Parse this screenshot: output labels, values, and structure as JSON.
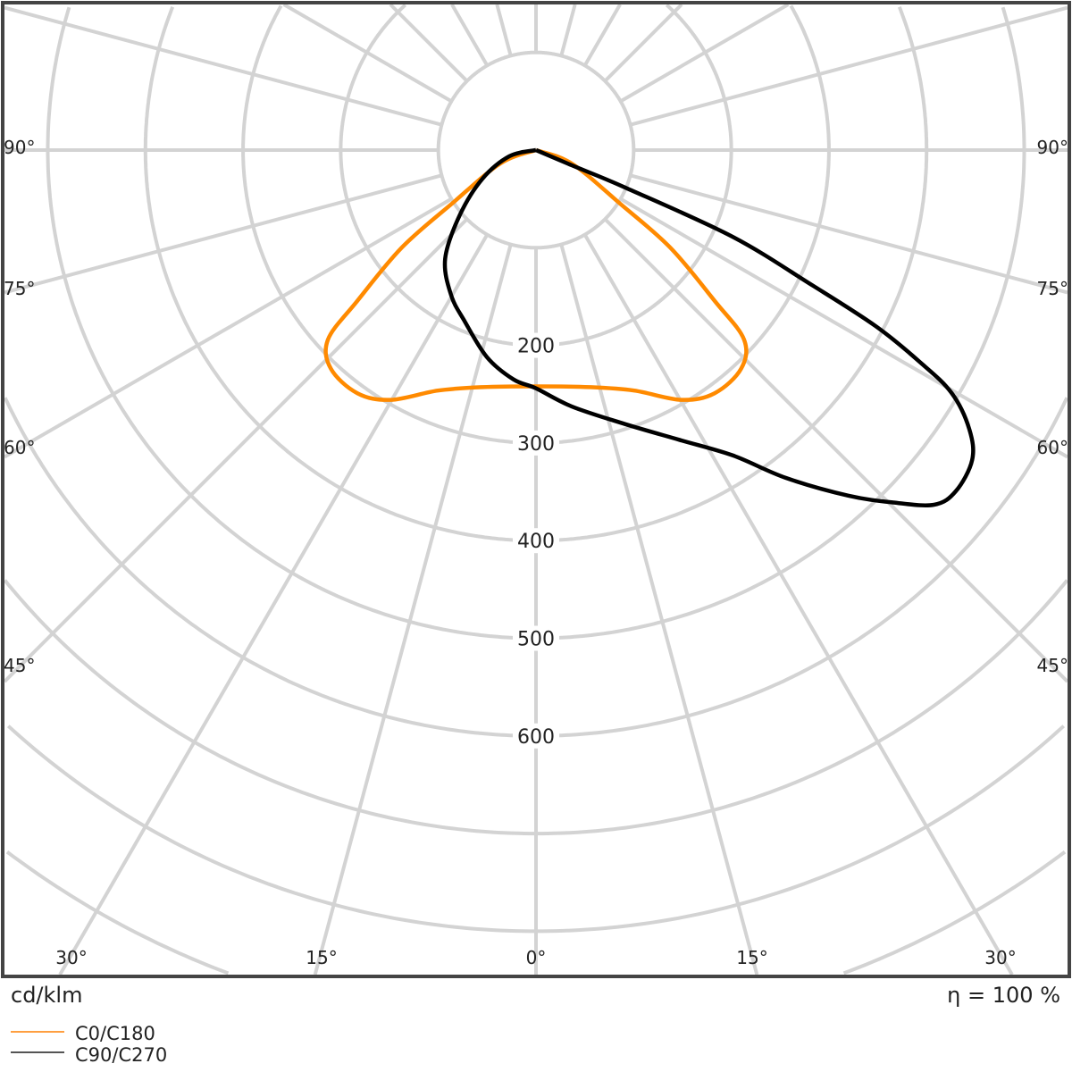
{
  "chart_data": {
    "type": "polar-line",
    "unit_label": "cd/klm",
    "efficiency_label": "η = 100 %",
    "radial_ticks": [
      200,
      300,
      400,
      500,
      600
    ],
    "radial_grid_step": 100,
    "angle_grid_step_deg": 15,
    "angle_labels_left": [
      "90°",
      "75°",
      "60°",
      "45°"
    ],
    "angle_labels_side_values": [
      90,
      75,
      60,
      45
    ],
    "angle_labels_bottom": [
      "30°",
      "15°",
      "0°",
      "15°",
      "30°"
    ],
    "angle_labels_bottom_values": [
      -30,
      -15,
      0,
      15,
      30
    ],
    "grid": true,
    "legend_position": "bottom-left",
    "series": [
      {
        "name": "C0/C180",
        "color": "#ff8a00",
        "points_gamma_deg_intensity": [
          [
            -90,
            0
          ],
          [
            -69.4,
            39
          ],
          [
            -57.6,
            101
          ],
          [
            -54,
            170
          ],
          [
            -49.8,
            240
          ],
          [
            -47.7,
            288
          ],
          [
            -43.2,
            307
          ],
          [
            -36.3,
            309
          ],
          [
            -30.2,
            296
          ],
          [
            -22.2,
            266
          ],
          [
            -12.8,
            249
          ],
          [
            0,
            242
          ],
          [
            12.8,
            249
          ],
          [
            22.2,
            266
          ],
          [
            30.2,
            296
          ],
          [
            36.3,
            309
          ],
          [
            43.2,
            307
          ],
          [
            47.7,
            288
          ],
          [
            49.8,
            240
          ],
          [
            54,
            170
          ],
          [
            57.6,
            101
          ],
          [
            69.4,
            39
          ],
          [
            90,
            0
          ]
        ]
      },
      {
        "name": "C90/C270",
        "color": "#000000",
        "points_gamma_deg_intensity": [
          [
            -90,
            0
          ],
          [
            -76.9,
            28
          ],
          [
            -61.9,
            62
          ],
          [
            -49.7,
            102
          ],
          [
            -39.9,
            145
          ],
          [
            -30.4,
            172
          ],
          [
            -22.6,
            190
          ],
          [
            -13.3,
            218
          ],
          [
            -5.6,
            236
          ],
          [
            0,
            244
          ],
          [
            7.9,
            265
          ],
          [
            18.0,
            295
          ],
          [
            26.3,
            331
          ],
          [
            32.8,
            372
          ],
          [
            37.3,
            422
          ],
          [
            42.1,
            477
          ],
          [
            45.4,
            514
          ],
          [
            48.3,
            546
          ],
          [
            50.9,
            554
          ],
          [
            54.6,
            548
          ],
          [
            57.2,
            528
          ],
          [
            59.7,
            493
          ],
          [
            61.1,
            449
          ],
          [
            62.6,
            392
          ],
          [
            63.9,
            316
          ],
          [
            66.2,
            220
          ],
          [
            67.2,
            99
          ],
          [
            67,
            40
          ],
          [
            90,
            0
          ]
        ]
      }
    ]
  },
  "legend": {
    "items": [
      {
        "label": "C0/C180",
        "color": "#ff9f40"
      },
      {
        "label": "C90/C270",
        "color": "#555555"
      }
    ]
  }
}
